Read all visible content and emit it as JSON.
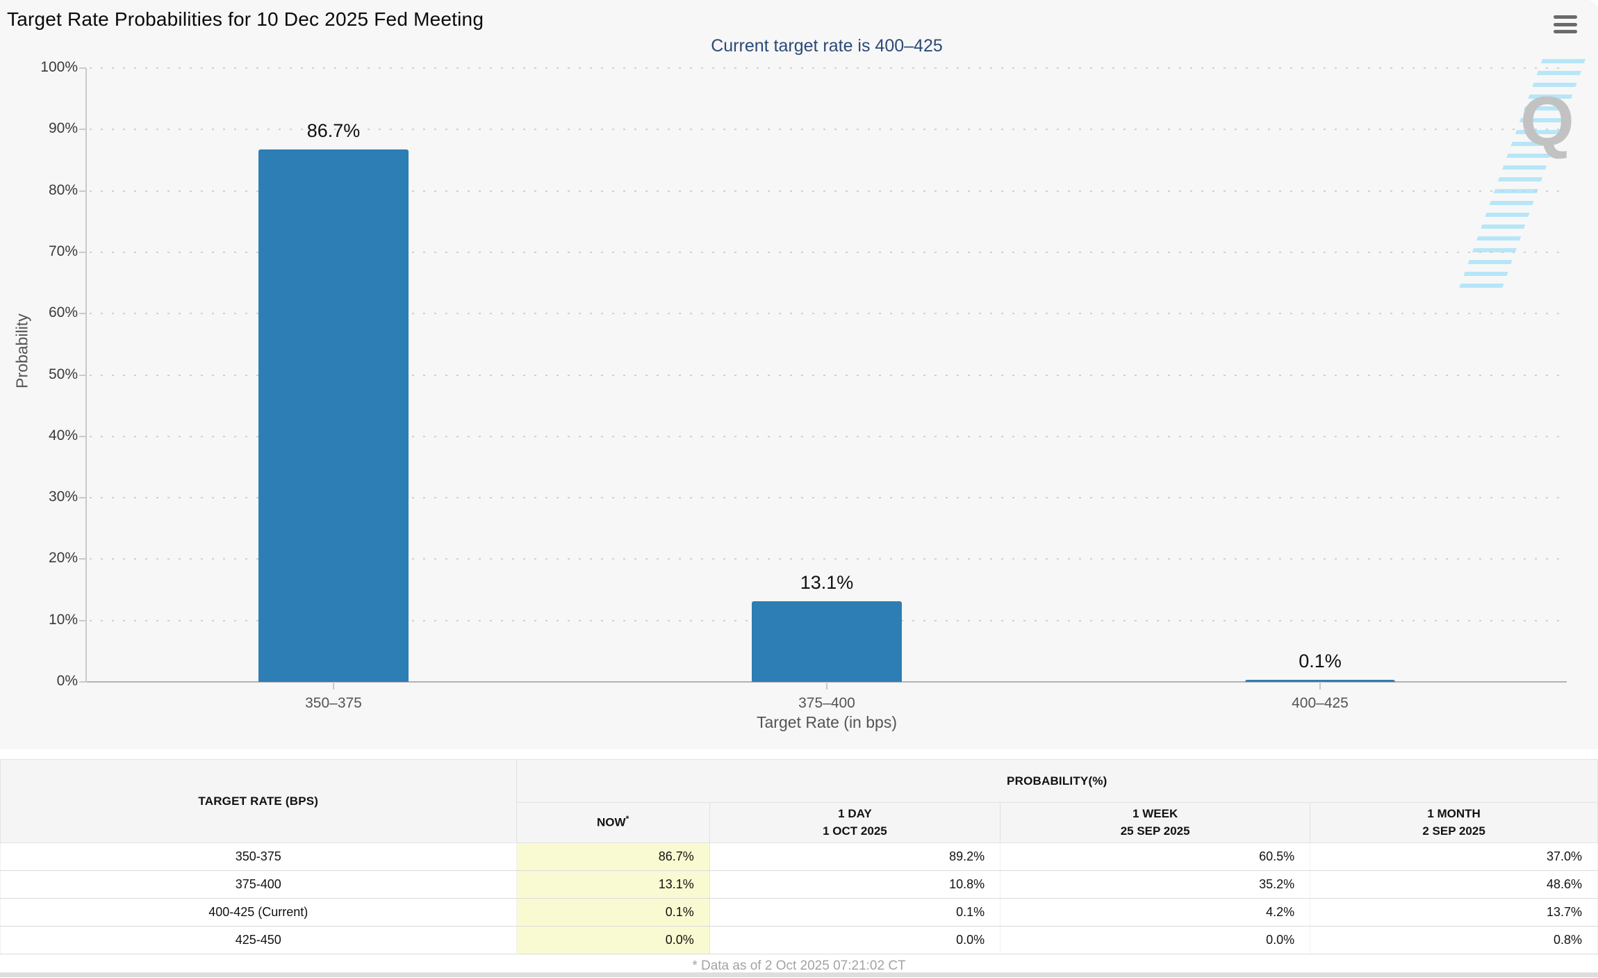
{
  "title": "Target Rate Probabilities for 10 Dec 2025 Fed Meeting",
  "subtitle": "Current target rate is 400–425",
  "watermark_letter": "Q",
  "chart_data": {
    "type": "bar",
    "title": "Target Rate Probabilities for 10 Dec 2025 Fed Meeting",
    "subtitle": "Current target rate is 400–425",
    "categories": [
      "350–375",
      "375–400",
      "400–425"
    ],
    "values": [
      86.7,
      13.1,
      0.1
    ],
    "value_labels": [
      "86.7%",
      "13.1%",
      "0.1%"
    ],
    "xlabel": "Target Rate (in bps)",
    "ylabel": "Probability",
    "ylim": [
      0,
      100
    ],
    "y_ticks": [
      "0%",
      "10%",
      "20%",
      "30%",
      "40%",
      "50%",
      "60%",
      "70%",
      "80%",
      "90%",
      "100%"
    ],
    "grid": "horizontal-dotted",
    "legend": "none",
    "bar_color": "#2d7eb5"
  },
  "table": {
    "rate_header": "TARGET RATE (BPS)",
    "group_header": "PROBABILITY(%)",
    "columns": [
      {
        "label": "NOW",
        "note": "*"
      },
      {
        "label": "1 DAY",
        "date": "1 OCT 2025"
      },
      {
        "label": "1 WEEK",
        "date": "25 SEP 2025"
      },
      {
        "label": "1 MONTH",
        "date": "2 SEP 2025"
      }
    ],
    "rows": [
      {
        "rate": "350-375",
        "values": [
          "86.7%",
          "89.2%",
          "60.5%",
          "37.0%"
        ]
      },
      {
        "rate": "375-400",
        "values": [
          "13.1%",
          "10.8%",
          "35.2%",
          "48.6%"
        ]
      },
      {
        "rate": "400-425 (Current)",
        "values": [
          "0.1%",
          "0.1%",
          "4.2%",
          "13.7%"
        ]
      },
      {
        "rate": "425-450",
        "values": [
          "0.0%",
          "0.0%",
          "0.0%",
          "0.8%"
        ]
      }
    ],
    "footnote": "* Data as of 2 Oct 2025 07:21:02 CT"
  },
  "colors": {
    "bar": "#2d7eb5",
    "subtitle_text": "#2b4a78",
    "chart_bg": "#f7f7f7",
    "now_column_bg": "#fafad2",
    "watermark_gray": "#c2c2c2",
    "watermark_stripes": "#b3e5f8"
  }
}
